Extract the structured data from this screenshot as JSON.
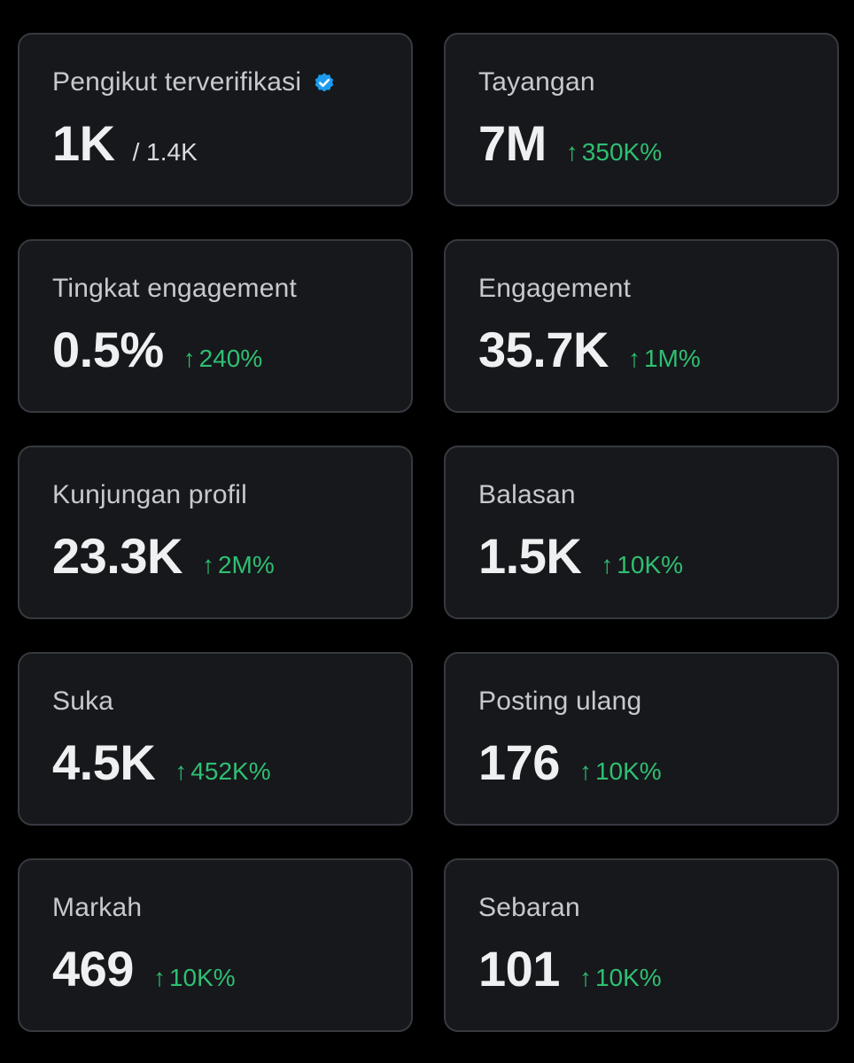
{
  "metrics": [
    {
      "title": "Pengikut terverifikasi",
      "value": "1K",
      "sub": "/ 1.4K",
      "change": "",
      "verified": true
    },
    {
      "title": "Tayangan",
      "value": "7M",
      "sub": "",
      "change": "350K%"
    },
    {
      "title": "Tingkat engagement",
      "value": "0.5%",
      "sub": "",
      "change": "240%"
    },
    {
      "title": "Engagement",
      "value": "35.7K",
      "sub": "",
      "change": "1M%"
    },
    {
      "title": "Kunjungan profil",
      "value": "23.3K",
      "sub": "",
      "change": "2M%"
    },
    {
      "title": "Balasan",
      "value": "1.5K",
      "sub": "",
      "change": "10K%"
    },
    {
      "title": "Suka",
      "value": "4.5K",
      "sub": "",
      "change": "452K%"
    },
    {
      "title": "Posting ulang",
      "value": "176",
      "sub": "",
      "change": "10K%"
    },
    {
      "title": "Markah",
      "value": "469",
      "sub": "",
      "change": "10K%"
    },
    {
      "title": "Sebaran",
      "value": "101",
      "sub": "",
      "change": "10K%"
    }
  ],
  "icons": {
    "verified": "verified-badge-icon",
    "trend": "arrow-up-icon",
    "trend_glyph": "↑"
  },
  "colors": {
    "background": "#000000",
    "card": "#16181c",
    "positive": "#2fbf71",
    "verified": "#1d9bf0"
  }
}
